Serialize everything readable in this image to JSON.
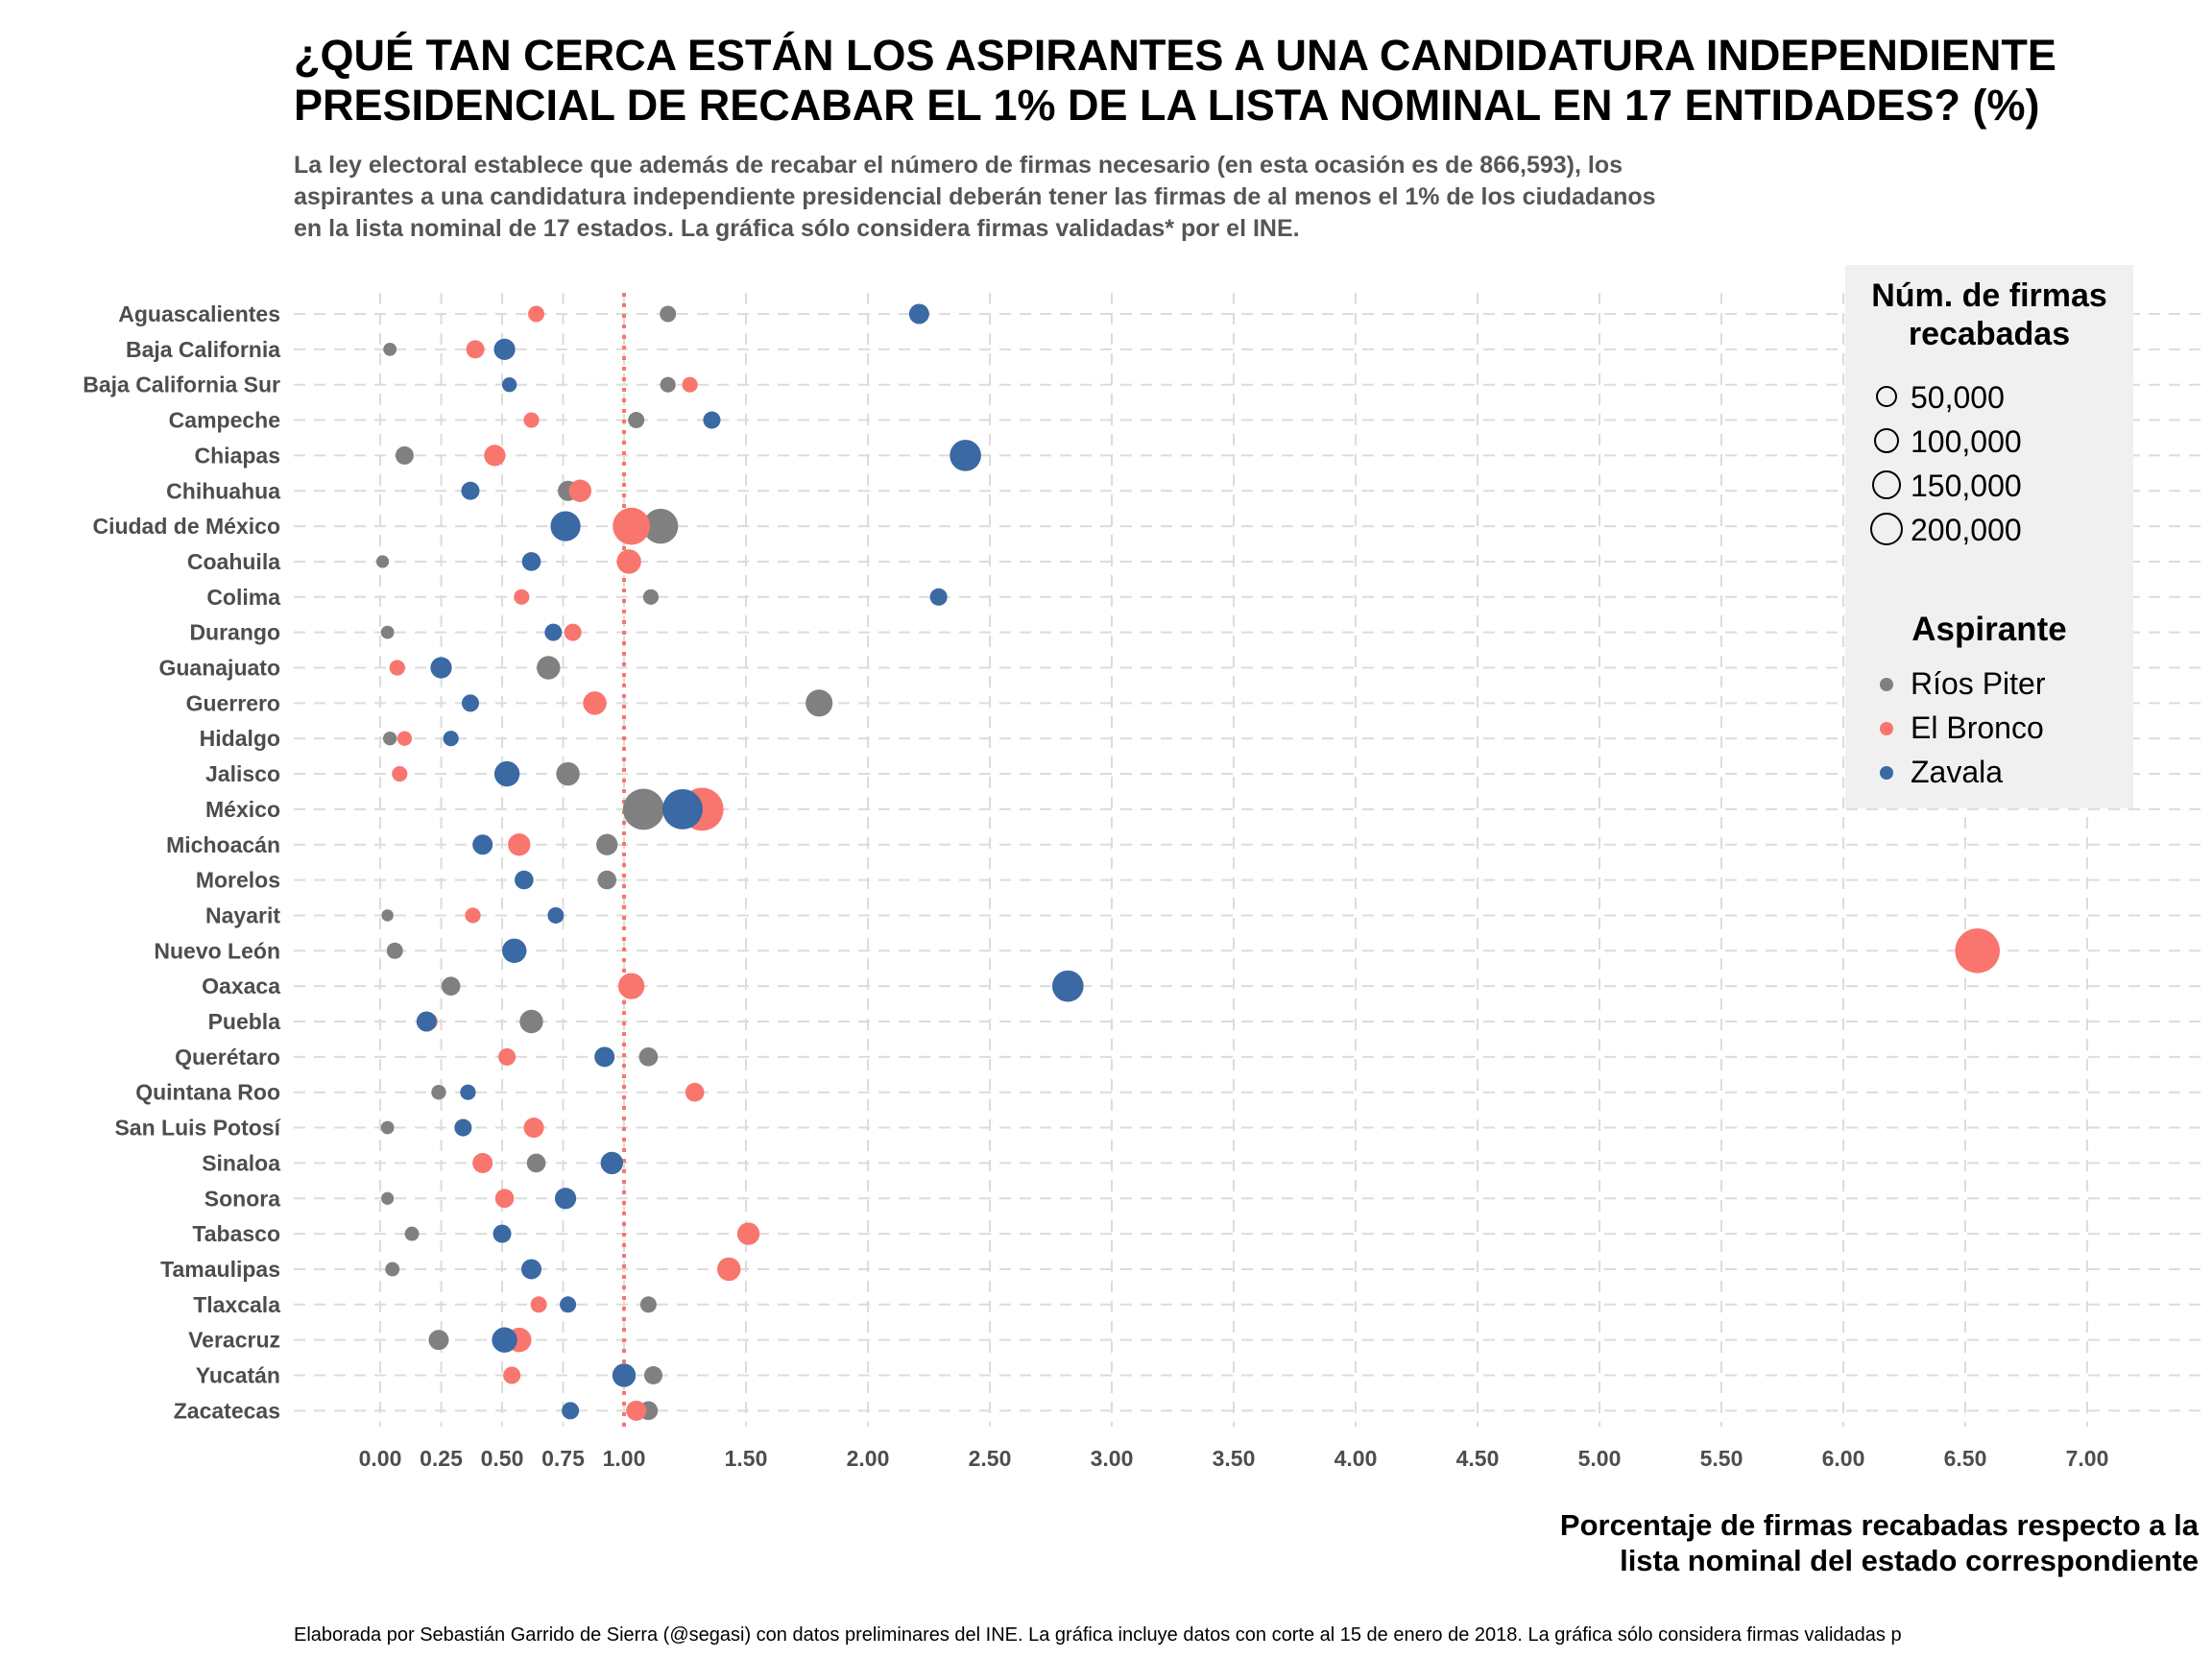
{
  "chart_data": {
    "type": "scatter",
    "title_lines": [
      "¿QUÉ TAN CERCA ESTÁN LOS ASPIRANTES A UNA CANDIDATURA INDEPENDIENTE",
      "PRESIDENCIAL DE RECABAR EL 1% DE LA LISTA NOMINAL EN 17 ENTIDADES? (%)"
    ],
    "subtitle_lines": [
      "La ley electoral establece que además de recabar el número de firmas necesario (en esta ocasión es de 866,593), los",
      "aspirantes a una candidatura independiente presidencial deberán tener las firmas de al menos el 1% de los ciudadanos",
      "en la lista nominal de 17 estados. La gráfica sólo considera firmas validadas* por el INE."
    ],
    "xlabel_lines": [
      "Porcentaje de firmas recabadas respecto a la",
      "lista nominal del estado correspondiente"
    ],
    "caption": "Elaborada por Sebastián Garrido de Sierra (@segasi) con datos preliminares del INE. La gráfica incluye datos con corte al 15 de enero de 2018. La gráfica sólo considera firmas validadas p",
    "xlim": [
      -0.35,
      7.2
    ],
    "x_ticks": [
      0,
      0.25,
      0.5,
      0.75,
      1,
      1.5,
      2,
      2.5,
      3,
      3.5,
      4,
      4.5,
      5,
      5.5,
      6,
      6.5,
      7
    ],
    "x_tick_labels": [
      "0.00",
      "0.25",
      "0.50",
      "0.75",
      "1.00",
      "1.50",
      "2.00",
      "2.50",
      "3.00",
      "3.50",
      "4.00",
      "4.50",
      "5.00",
      "5.50",
      "6.00",
      "6.50",
      "7.00"
    ],
    "reference_line_x": 1.0,
    "reference_line_color": "#f8766d",
    "grid": true,
    "legend_placement": "top-right",
    "size_legend": {
      "title_lines": [
        "Núm. de firmas",
        "recabadas"
      ],
      "entries": [
        {
          "label": "50,000",
          "value": 50000
        },
        {
          "label": "100,000",
          "value": 100000
        },
        {
          "label": "150,000",
          "value": 150000
        },
        {
          "label": "200,000",
          "value": 200000
        }
      ]
    },
    "color_legend": {
      "title": "Aspirante",
      "entries": [
        {
          "label": "Ríos Piter",
          "color": "#808080"
        },
        {
          "label": "El Bronco",
          "color": "#f8766d"
        },
        {
          "label": "Zavala",
          "color": "#3a69a4"
        }
      ]
    },
    "categories": [
      "Aguascalientes",
      "Baja California",
      "Baja California Sur",
      "Campeche",
      "Chiapas",
      "Chihuahua",
      "Ciudad de México",
      "Coahuila",
      "Colima",
      "Durango",
      "Guanajuato",
      "Guerrero",
      "Hidalgo",
      "Jalisco",
      "México",
      "Michoacán",
      "Morelos",
      "Nayarit",
      "Nuevo León",
      "Oaxaca",
      "Puebla",
      "Querétaro",
      "Quintana Roo",
      "San Luis Potosí",
      "Sinaloa",
      "Sonora",
      "Tabasco",
      "Tamaulipas",
      "Tlaxcala",
      "Veracruz",
      "Yucatán",
      "Zacatecas"
    ],
    "series": [
      {
        "name": "Ríos Piter",
        "color": "#808080",
        "x": [
          1.18,
          0.04,
          1.18,
          1.05,
          0.1,
          0.77,
          1.15,
          0.01,
          1.11,
          0.03,
          0.69,
          1.8,
          0.04,
          0.77,
          1.08,
          0.93,
          0.93,
          0.03,
          0.06,
          0.29,
          0.62,
          1.1,
          0.24,
          0.03,
          0.64,
          0.03,
          0.13,
          0.05,
          1.1,
          0.24,
          1.12,
          1.1
        ],
        "firmas": [
          12000,
          5000,
          10000,
          12000,
          18000,
          25000,
          120000,
          4000,
          10000,
          5000,
          40000,
          60000,
          6000,
          40000,
          180000,
          30000,
          20000,
          3000,
          12000,
          20000,
          40000,
          20000,
          8000,
          5000,
          20000,
          4000,
          7000,
          7000,
          12000,
          25000,
          18000,
          20000
        ]
      },
      {
        "name": "El Bronco",
        "color": "#f8766d",
        "x": [
          0.64,
          0.39,
          1.27,
          0.62,
          0.47,
          0.82,
          1.03,
          1.02,
          0.58,
          0.79,
          0.07,
          0.88,
          0.1,
          0.08,
          1.32,
          0.57,
          null,
          0.38,
          6.55,
          1.03,
          0.2,
          0.52,
          1.29,
          0.63,
          0.42,
          0.51,
          1.51,
          1.43,
          0.65,
          0.57,
          0.54,
          1.05
        ],
        "firmas": [
          12000,
          18000,
          10000,
          10000,
          30000,
          35000,
          140000,
          45000,
          10000,
          15000,
          10000,
          40000,
          8000,
          10000,
          200000,
          35000,
          null,
          10000,
          220000,
          55000,
          15000,
          15000,
          20000,
          25000,
          25000,
          20000,
          35000,
          40000,
          12000,
          45000,
          15000,
          25000
        ]
      },
      {
        "name": "Zavala",
        "color": "#3a69a4",
        "x": [
          2.21,
          0.51,
          0.53,
          1.36,
          2.4,
          0.37,
          0.76,
          0.62,
          2.29,
          0.71,
          0.25,
          0.37,
          0.29,
          0.52,
          1.24,
          0.42,
          0.59,
          0.72,
          0.55,
          2.82,
          0.19,
          0.92,
          0.36,
          0.34,
          0.95,
          0.76,
          0.5,
          0.62,
          0.77,
          0.51,
          1.0,
          0.78
        ],
        "firmas": [
          25000,
          30000,
          8000,
          15000,
          90000,
          18000,
          80000,
          20000,
          15000,
          15000,
          30000,
          15000,
          10000,
          50000,
          170000,
          25000,
          20000,
          12000,
          45000,
          90000,
          25000,
          25000,
          10000,
          15000,
          35000,
          30000,
          18000,
          25000,
          12000,
          50000,
          40000,
          15000
        ]
      }
    ]
  }
}
